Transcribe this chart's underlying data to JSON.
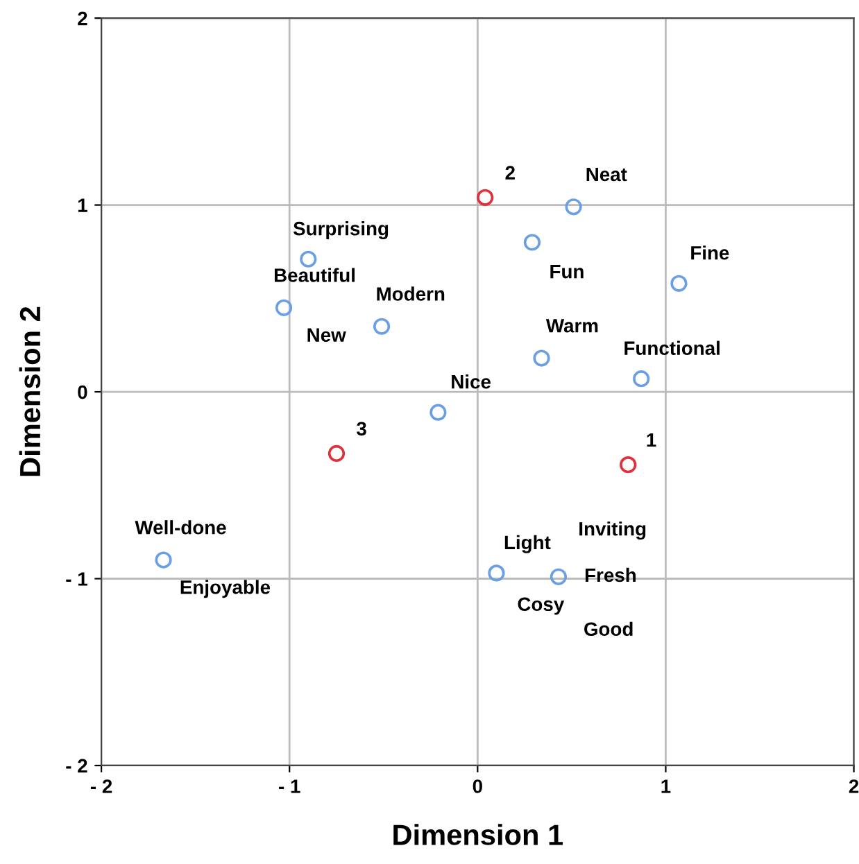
{
  "chart_data": {
    "type": "scatter",
    "xlabel": "Dimension 1",
    "ylabel": "Dimension 2",
    "xlim": [
      -2,
      2
    ],
    "ylim": [
      -2,
      2
    ],
    "xticks": [
      {
        "value": -2,
        "label": "- 2"
      },
      {
        "value": -1,
        "label": "- 1"
      },
      0,
      1,
      2
    ],
    "yticks": [
      {
        "value": -2,
        "label": "- 2"
      },
      {
        "value": -1,
        "label": "- 1"
      },
      0,
      1,
      2
    ],
    "grid": true,
    "marker": "circle",
    "series": [
      {
        "color": "#6a9fe6",
        "x": [
          0.51,
          0.29,
          1.07,
          -0.9,
          -1.03,
          -0.51,
          0.34,
          0.87,
          -0.21,
          -1.67,
          0.1,
          0.43
        ],
        "values": [
          0.99,
          0.8,
          0.58,
          0.71,
          0.45,
          0.35,
          0.18,
          0.07,
          -0.11,
          -0.9,
          -0.97,
          -0.99
        ]
      },
      {
        "color": "#e0303a",
        "x": [
          0.04,
          -0.75,
          0.8
        ],
        "values": [
          1.04,
          -0.33,
          -0.39
        ]
      }
    ],
    "annotations": [
      {
        "text": "Neat",
        "x": 0.51,
        "y": 0.99
      },
      {
        "text": "Fun",
        "x": 0.29,
        "y": 0.8
      },
      {
        "text": "Fine",
        "x": 1.07,
        "y": 0.58
      },
      {
        "text": "Surprising",
        "x": -0.9,
        "y": 0.71
      },
      {
        "text": "Beautiful",
        "x": -1.03,
        "y": 0.45
      },
      {
        "text": "New",
        "x": -1.03,
        "y": 0.45
      },
      {
        "text": "Modern",
        "x": -0.51,
        "y": 0.35
      },
      {
        "text": "Warm",
        "x": 0.34,
        "y": 0.18
      },
      {
        "text": "Functional",
        "x": 0.87,
        "y": 0.07
      },
      {
        "text": "Nice",
        "x": -0.21,
        "y": -0.11
      },
      {
        "text": "Well-done",
        "x": -1.67,
        "y": -0.9
      },
      {
        "text": "Enjoyable",
        "x": -1.67,
        "y": -0.9
      },
      {
        "text": "Light",
        "x": 0.1,
        "y": -0.97
      },
      {
        "text": "Cosy",
        "x": 0.1,
        "y": -0.97
      },
      {
        "text": "Inviting",
        "x": 0.43,
        "y": -0.99
      },
      {
        "text": "Fresh",
        "x": 0.43,
        "y": -0.99
      },
      {
        "text": "Good",
        "x": 0.43,
        "y": -0.99
      },
      {
        "text": "2",
        "x": 0.04,
        "y": 1.04
      },
      {
        "text": "3",
        "x": -0.75,
        "y": -0.33
      },
      {
        "text": "1",
        "x": 0.8,
        "y": -0.39
      }
    ]
  }
}
